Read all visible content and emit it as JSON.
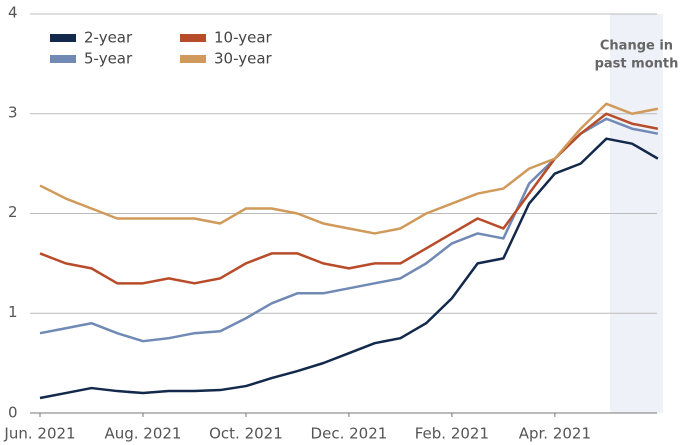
{
  "chart_data": {
    "type": "line",
    "x": [
      0,
      0.5,
      1,
      1.5,
      2,
      2.5,
      3,
      3.5,
      4,
      4.5,
      5,
      5.5,
      6,
      6.5,
      7,
      7.5,
      8,
      8.5,
      9,
      9.5,
      10,
      10.5,
      11,
      11.5,
      12
    ],
    "series": [
      {
        "name": "2-year",
        "color": "#13294b",
        "values": [
          0.15,
          0.2,
          0.25,
          0.22,
          0.2,
          0.22,
          0.22,
          0.23,
          0.27,
          0.35,
          0.42,
          0.5,
          0.6,
          0.7,
          0.75,
          0.9,
          1.15,
          1.5,
          1.55,
          2.1,
          2.4,
          2.5,
          2.75,
          2.7,
          2.55
        ]
      },
      {
        "name": "5-year",
        "color": "#7089b5",
        "values": [
          0.8,
          0.85,
          0.9,
          0.8,
          0.72,
          0.75,
          0.8,
          0.82,
          0.95,
          1.1,
          1.2,
          1.2,
          1.25,
          1.3,
          1.35,
          1.5,
          1.7,
          1.8,
          1.75,
          2.3,
          2.55,
          2.8,
          2.95,
          2.85,
          2.8
        ]
      },
      {
        "name": "10-year",
        "color": "#b84c2a",
        "values": [
          1.6,
          1.5,
          1.45,
          1.3,
          1.3,
          1.35,
          1.3,
          1.35,
          1.5,
          1.6,
          1.6,
          1.5,
          1.45,
          1.5,
          1.5,
          1.65,
          1.8,
          1.95,
          1.85,
          2.2,
          2.55,
          2.8,
          3.0,
          2.9,
          2.85
        ]
      },
      {
        "name": "30-year",
        "color": "#d09a5a",
        "values": [
          2.28,
          2.15,
          2.05,
          1.95,
          1.95,
          1.95,
          1.95,
          1.9,
          2.05,
          2.05,
          2.0,
          1.9,
          1.85,
          1.8,
          1.85,
          2.0,
          2.1,
          2.2,
          2.25,
          2.45,
          2.55,
          2.85,
          3.1,
          3.0,
          3.05
        ]
      }
    ],
    "xlim": [
      0,
      12.1
    ],
    "xticks": [
      {
        "value": 0,
        "label": "Jun. 2021"
      },
      {
        "value": 2,
        "label": "Aug. 2021"
      },
      {
        "value": 4,
        "label": "Oct. 2021"
      },
      {
        "value": 6,
        "label": "Dec. 2021"
      },
      {
        "value": 8,
        "label": "Feb. 2021"
      },
      {
        "value": 10,
        "label": "Apr. 2021"
      }
    ],
    "ylim": [
      0,
      4
    ],
    "yticks": [
      0,
      1,
      2,
      3,
      4
    ],
    "grid": true,
    "legend": "top-left",
    "shade": {
      "xlim": [
        11.07,
        12.1
      ],
      "color": "#eef1f7",
      "label": [
        "Change in",
        "past month"
      ]
    }
  }
}
